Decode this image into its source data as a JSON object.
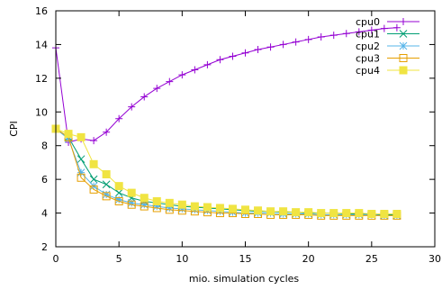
{
  "chart_data": {
    "type": "line",
    "title": "",
    "xlabel": "mio. simulation cycles",
    "ylabel": "CPI",
    "xlim": [
      0,
      30
    ],
    "ylim": [
      2,
      16
    ],
    "xticks": [
      0,
      5,
      10,
      15,
      20,
      25,
      30
    ],
    "yticks": [
      2,
      4,
      6,
      8,
      10,
      12,
      14,
      16
    ],
    "grid": false,
    "legend_position": "top-right",
    "x": [
      0,
      1,
      2,
      3,
      4,
      5,
      6,
      7,
      8,
      9,
      10,
      11,
      12,
      13,
      14,
      15,
      16,
      17,
      18,
      19,
      20,
      21,
      22,
      23,
      24,
      25,
      26,
      27
    ],
    "series": [
      {
        "name": "cpu0",
        "color": "#9400d3",
        "marker": "plus",
        "values": [
          13.8,
          8.2,
          8.4,
          8.3,
          8.8,
          9.6,
          10.3,
          10.9,
          11.4,
          11.8,
          12.2,
          12.5,
          12.8,
          13.1,
          13.3,
          13.5,
          13.7,
          13.85,
          14.0,
          14.15,
          14.3,
          14.45,
          14.55,
          14.65,
          14.75,
          14.85,
          14.95,
          15.0
        ]
      },
      {
        "name": "cpu1",
        "color": "#009e73",
        "marker": "x",
        "values": [
          9.0,
          8.5,
          7.2,
          6.0,
          5.7,
          5.2,
          4.9,
          4.7,
          4.6,
          4.5,
          4.4,
          4.35,
          4.3,
          4.25,
          4.2,
          4.15,
          4.1,
          4.1,
          4.05,
          4.05,
          4.0,
          4.0,
          4.0,
          3.95,
          3.95,
          3.95,
          3.9,
          3.9
        ]
      },
      {
        "name": "cpu2",
        "color": "#56b4e9",
        "marker": "star",
        "values": [
          9.0,
          8.4,
          6.4,
          5.6,
          5.1,
          4.8,
          4.6,
          4.5,
          4.4,
          4.3,
          4.25,
          4.2,
          4.15,
          4.1,
          4.05,
          4.0,
          4.0,
          4.0,
          3.95,
          3.95,
          3.95,
          3.9,
          3.9,
          3.9,
          3.9,
          3.9,
          3.85,
          3.85
        ]
      },
      {
        "name": "cpu3",
        "color": "#e69f00",
        "marker": "square",
        "values": [
          9.0,
          8.5,
          6.1,
          5.4,
          5.0,
          4.7,
          4.5,
          4.4,
          4.3,
          4.2,
          4.15,
          4.1,
          4.05,
          4.0,
          4.0,
          3.95,
          3.95,
          3.9,
          3.9,
          3.9,
          3.9,
          3.85,
          3.85,
          3.85,
          3.85,
          3.85,
          3.85,
          3.85
        ]
      },
      {
        "name": "cpu4",
        "color": "#f0e442",
        "marker": "filled-square",
        "values": [
          9.0,
          8.7,
          8.5,
          6.9,
          6.3,
          5.6,
          5.2,
          4.9,
          4.7,
          4.6,
          4.5,
          4.4,
          4.35,
          4.3,
          4.25,
          4.2,
          4.15,
          4.1,
          4.1,
          4.05,
          4.05,
          4.0,
          4.0,
          4.0,
          4.0,
          3.95,
          3.95,
          3.95
        ]
      }
    ]
  }
}
